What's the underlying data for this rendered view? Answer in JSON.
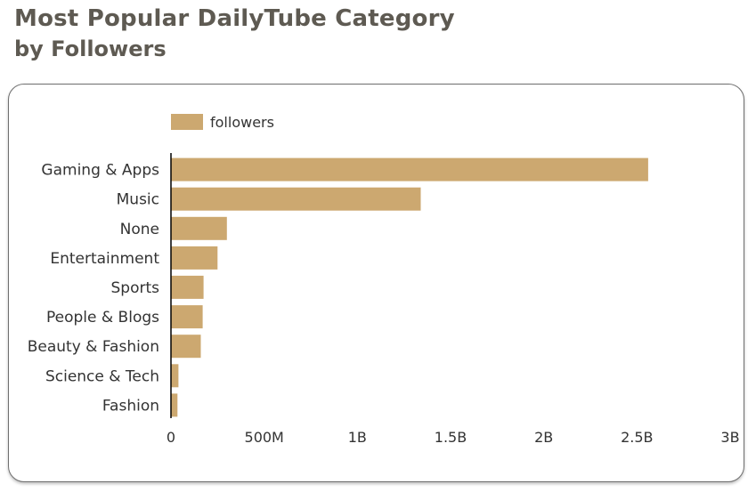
{
  "header": {
    "title": "Most Popular DailyTube Category",
    "subtitle": "by Followers"
  },
  "colors": {
    "bar": "#cca870",
    "title": "#5e5a52",
    "axis": "#000000"
  },
  "chart_data": {
    "type": "bar",
    "orientation": "horizontal",
    "title": "Most Popular DailyTube Category",
    "subtitle": "by Followers",
    "legend": {
      "position": "top-left",
      "entries": [
        "followers"
      ]
    },
    "categories": [
      "Gaming & Apps",
      "Music",
      "None",
      "Entertainment",
      "Sports",
      "People & Blogs",
      "Beauty & Fashion",
      "Science & Tech",
      "Fashion"
    ],
    "series": [
      {
        "name": "followers",
        "values": [
          2560000000,
          1340000000,
          300000000,
          250000000,
          175000000,
          170000000,
          160000000,
          40000000,
          35000000
        ]
      }
    ],
    "xlim": [
      0,
      3000000000
    ],
    "xticks": [
      0,
      500000000,
      1000000000,
      1500000000,
      2000000000,
      2500000000,
      3000000000
    ],
    "xtick_labels": [
      "0",
      "500M",
      "1B",
      "1.5B",
      "2B",
      "2.5B",
      "3B"
    ],
    "grid": false
  }
}
